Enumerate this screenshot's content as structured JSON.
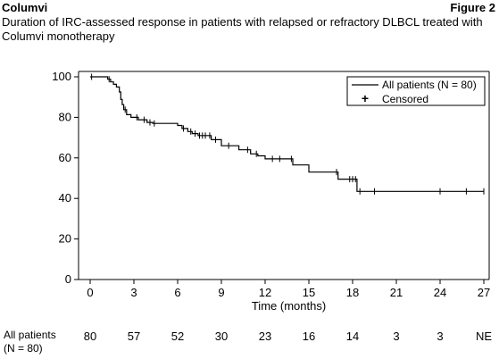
{
  "header": {
    "product": "Columvi",
    "figure_label": "Figure 2",
    "subtitle": "Duration of IRC-assessed response in patients with relapsed or refractory DLBCL treated with Columvi monotherapy"
  },
  "chart_data": {
    "type": "line",
    "subtype": "kaplan-meier",
    "xlabel": "Time (months)",
    "ylabel": "",
    "xlim": [
      0,
      27
    ],
    "ylim": [
      0,
      100
    ],
    "x_ticks": [
      0,
      3,
      6,
      9,
      12,
      15,
      18,
      21,
      24,
      27
    ],
    "x_tick_labels": [
      "0",
      "3",
      "6",
      "9",
      "12",
      "15",
      "18",
      "21",
      "24",
      "27"
    ],
    "y_ticks": [
      0,
      20,
      40,
      60,
      80,
      100
    ],
    "y_tick_labels": [
      "0",
      "20",
      "40",
      "60",
      "80",
      "100"
    ],
    "grid": false,
    "legend": {
      "placement": "top-right",
      "line_label": "All patients (N = 80)",
      "censor_label": "Censored"
    },
    "series": [
      {
        "name": "All patients (N = 80)",
        "x": [
          0,
          1.0,
          1.2,
          1.4,
          1.6,
          1.8,
          2.0,
          2.1,
          2.2,
          2.3,
          2.5,
          2.8,
          3.3,
          3.9,
          4.3,
          5.5,
          6.0,
          6.3,
          6.7,
          7.0,
          7.4,
          7.8,
          8.0,
          8.3,
          9.0,
          9.6,
          10.2,
          11.0,
          11.5,
          12.0,
          12.3,
          13.5,
          13.9,
          15.0,
          16.8,
          17.0,
          18.1,
          18.3
        ],
        "y": [
          100,
          100,
          98.8,
          97.5,
          96.3,
          95.0,
          92.5,
          88.8,
          86.3,
          83.8,
          81.3,
          80.0,
          78.8,
          77.5,
          77.0,
          77.0,
          76.0,
          74.5,
          73.0,
          72.0,
          71.0,
          71.0,
          71.0,
          69.0,
          66.0,
          66.0,
          64.0,
          62.0,
          61.0,
          59.5,
          59.5,
          59.5,
          56.5,
          53.0,
          53.0,
          49.5,
          49.5,
          43.5
        ],
        "end_x": 27.0,
        "censored_x": [
          0.1,
          1.3,
          2.4,
          3.2,
          3.7,
          4.1,
          4.4,
          6.4,
          6.9,
          7.2,
          7.5,
          7.7,
          7.9,
          8.2,
          8.6,
          9.5,
          10.8,
          11.4,
          12.5,
          13.0,
          13.8,
          16.9,
          17.8,
          18.0,
          18.2,
          18.5,
          19.5,
          24.0,
          25.8,
          27.0
        ]
      }
    ],
    "risk_table": {
      "label_line1": "All patients",
      "label_line2": "(N = 80)",
      "times": [
        0,
        3,
        6,
        9,
        12,
        15,
        18,
        21,
        24,
        27
      ],
      "values": [
        "80",
        "57",
        "52",
        "30",
        "23",
        "16",
        "14",
        "3",
        "3",
        "NE"
      ]
    }
  }
}
